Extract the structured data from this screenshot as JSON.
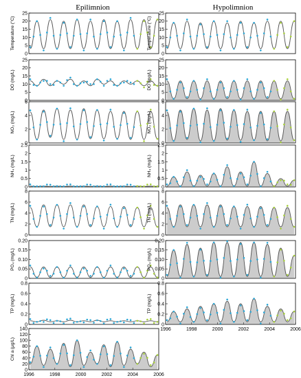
{
  "figure": {
    "columns": [
      "Epilimnion",
      "Hypolimnion"
    ],
    "colors": {
      "model_line": "#555555",
      "model_band": "#6e6e6e",
      "obs_calibration": "#2aa6d6",
      "obs_validation": "#a6cf3a"
    }
  },
  "chart_data": [
    {
      "type": "line",
      "column": "Epilimnion",
      "ylabel": "Temperature (°C)",
      "ylim": [
        0,
        25
      ],
      "yticks": [
        "0",
        "5",
        "10",
        "15",
        "20",
        "25"
      ],
      "series": [
        {
          "values": [
            3,
            20,
            3,
            21,
            3,
            20,
            3,
            21,
            3,
            20,
            3,
            21,
            3,
            20,
            3,
            21,
            3,
            21,
            3,
            21
          ]
        }
      ],
      "x": "1996–2006 (seasonal)"
    },
    {
      "type": "line",
      "column": "Epilimnion",
      "ylabel": "DO (mg/L)",
      "ylim": [
        0,
        25
      ],
      "yticks": [
        "0",
        "5",
        "10",
        "15",
        "20",
        "25"
      ],
      "series": [
        {
          "values": [
            12,
            9,
            13,
            9,
            12,
            10,
            13,
            9,
            12,
            9,
            13,
            10,
            12,
            9,
            12,
            10,
            12,
            9,
            12,
            9
          ]
        }
      ]
    },
    {
      "type": "line",
      "column": "Epilimnion",
      "ylabel": "NO₃ (mg/L)",
      "ylim": [
        0,
        6
      ],
      "yticks": [
        "0",
        "2",
        "4",
        "6"
      ],
      "series": [
        {
          "values": [
            4.5,
            0.5,
            4.8,
            0.8,
            5,
            0.5,
            4.8,
            0.5,
            5,
            0.6,
            4.8,
            0.6,
            4.6,
            0.6,
            4.6,
            0.5,
            4.6,
            0.5,
            4.6,
            0.6
          ]
        }
      ]
    },
    {
      "type": "line",
      "column": "Epilimnion",
      "ylabel": "NH₄ (mg/L)",
      "ylim": [
        0,
        2.5
      ],
      "yticks": [
        "0",
        "0.5",
        "1",
        "1.5",
        "2",
        "2.5"
      ],
      "series": [
        {
          "values": [
            0.05,
            0.03,
            0.05,
            0.03,
            0.05,
            0.03,
            0.05,
            0.03,
            0.05,
            0.03,
            0.05,
            0.03,
            0.05,
            0.03,
            0.05,
            0.03,
            0.05,
            0.03,
            0.05,
            0.03
          ]
        }
      ]
    },
    {
      "type": "line",
      "column": "Epilimnion",
      "ylabel": "TN (mg/L)",
      "ylim": [
        0,
        8
      ],
      "yticks": [
        "0",
        "2",
        "4",
        "6",
        "8"
      ],
      "series": [
        {
          "values": [
            5,
            1.5,
            5.5,
            1.5,
            5.5,
            1.5,
            5.5,
            1.5,
            5.5,
            1.5,
            5.2,
            1.5,
            5.2,
            1.5,
            5.2,
            1.5,
            5,
            1.5,
            5,
            1.5
          ]
        }
      ]
    },
    {
      "type": "line",
      "column": "Epilimnion",
      "ylabel": "PO₄ (mg/L)",
      "ylim": [
        0,
        0.2
      ],
      "yticks": [
        "0",
        "0.05",
        "0.10",
        "0.15",
        "0.20"
      ],
      "series": [
        {
          "values": [
            0.06,
            0.005,
            0.06,
            0.005,
            0.06,
            0.005,
            0.06,
            0.005,
            0.06,
            0.005,
            0.06,
            0.005,
            0.06,
            0.005,
            0.06,
            0.005,
            0.06,
            0.005,
            0.06,
            0.005
          ]
        }
      ]
    },
    {
      "type": "line",
      "column": "Epilimnion",
      "ylabel": "TP (mg/L)",
      "ylim": [
        0,
        0.8
      ],
      "yticks": [
        "0",
        "0.2",
        "0.4",
        "0.6",
        "0.8"
      ],
      "series": [
        {
          "values": [
            0.07,
            0.05,
            0.08,
            0.05,
            0.07,
            0.05,
            0.08,
            0.05,
            0.07,
            0.05,
            0.08,
            0.05,
            0.07,
            0.05,
            0.07,
            0.05,
            0.07,
            0.05,
            0.07,
            0.05
          ]
        }
      ]
    },
    {
      "type": "line",
      "column": "Epilimnion",
      "ylabel": "Chl a (μg/L)",
      "ylim": [
        0,
        140
      ],
      "yticks": [
        "0",
        "20",
        "40",
        "60",
        "80",
        "100",
        "120",
        "140"
      ],
      "xlim": [
        1996,
        2006
      ],
      "xticks": [
        "1996",
        "1998",
        "2000",
        "2002",
        "2004",
        "2006"
      ],
      "series": [
        {
          "values": [
            20,
            80,
            15,
            70,
            20,
            90,
            10,
            100,
            15,
            60,
            20,
            85,
            10,
            95,
            15,
            70,
            20,
            60,
            10,
            50
          ]
        }
      ]
    },
    {
      "type": "line",
      "column": "Hypolimnion",
      "ylabel": "Temperature (°C)",
      "ylim": [
        0,
        25
      ],
      "yticks": [
        "0",
        "5",
        "10",
        "15",
        "20",
        "25"
      ],
      "series": [
        {
          "values": [
            3,
            19,
            3,
            20,
            3,
            19,
            3,
            20,
            3,
            19,
            3,
            20,
            3,
            19,
            3,
            20,
            3,
            20,
            3,
            20
          ]
        }
      ]
    },
    {
      "type": "line",
      "column": "Hypolimnion",
      "ylabel": "DO (mg/L)",
      "ylim": [
        0,
        25
      ],
      "yticks": [
        "0",
        "5",
        "10",
        "15",
        "20",
        "25"
      ],
      "series": [
        {
          "values": [
            12,
            1,
            12,
            1,
            12,
            1,
            12,
            1,
            12,
            1,
            12,
            1,
            12,
            1,
            12,
            1,
            12,
            1,
            12,
            1
          ]
        }
      ]
    },
    {
      "type": "line",
      "column": "Hypolimnion",
      "ylabel": "NO₃ (mg/L)",
      "ylim": [
        0,
        6
      ],
      "yticks": [
        "0",
        "2",
        "4",
        "6"
      ],
      "series": [
        {
          "values": [
            4.5,
            0.3,
            4.8,
            0.5,
            5,
            0.3,
            4.8,
            0.3,
            5,
            0.4,
            4.8,
            0.4,
            4.6,
            0.4,
            4.6,
            0.3,
            4.6,
            0.3,
            4.6,
            0.4
          ]
        }
      ]
    },
    {
      "type": "line",
      "column": "Hypolimnion",
      "ylabel": "NH₄ (mg/L)",
      "ylim": [
        0,
        2.5
      ],
      "yticks": [
        "0",
        "0.5",
        "1",
        "1.5",
        "2",
        "2.5"
      ],
      "series": [
        {
          "values": [
            0.05,
            0.6,
            0.05,
            0.9,
            0.05,
            0.7,
            0.05,
            0.8,
            0.05,
            1.2,
            0.05,
            0.9,
            0.05,
            1.5,
            0.05,
            0.8,
            0.05,
            0.5,
            0.05,
            0.4
          ]
        }
      ]
    },
    {
      "type": "line",
      "column": "Hypolimnion",
      "ylabel": "TN (mg/L)",
      "ylim": [
        0,
        8
      ],
      "yticks": [
        "0",
        "2",
        "4",
        "6",
        "8"
      ],
      "series": [
        {
          "values": [
            5,
            1.5,
            5.5,
            1.5,
            5.5,
            1.5,
            5.5,
            1.5,
            5.5,
            1.5,
            5.2,
            1.5,
            5.2,
            1.5,
            5.2,
            1.5,
            5,
            1.5,
            5,
            1.5
          ]
        }
      ]
    },
    {
      "type": "line",
      "column": "Hypolimnion",
      "ylabel": "PO₄ (mg/L)",
      "ylim": [
        0,
        0.2
      ],
      "yticks": [
        "0",
        "0.05",
        "0.10",
        "0.15",
        "0.20"
      ],
      "series": [
        {
          "values": [
            0.01,
            0.15,
            0.01,
            0.18,
            0.01,
            0.16,
            0.01,
            0.19,
            0.01,
            0.19,
            0.01,
            0.19,
            0.01,
            0.19,
            0.01,
            0.18,
            0.01,
            0.16,
            0.01,
            0.12
          ]
        }
      ]
    },
    {
      "type": "line",
      "column": "Hypolimnion",
      "ylabel": "TP (mg/L)",
      "ylim": [
        0,
        0.8
      ],
      "yticks": [
        "0",
        "0.2",
        "0.4",
        "0.6",
        "0.8"
      ],
      "xlim": [
        1996,
        2006
      ],
      "xticks": [
        "1996",
        "1998",
        "2000",
        "2002",
        "2004",
        "2006"
      ],
      "series": [
        {
          "values": [
            0.05,
            0.25,
            0.05,
            0.3,
            0.05,
            0.35,
            0.05,
            0.4,
            0.05,
            0.45,
            0.05,
            0.4,
            0.05,
            0.5,
            0.05,
            0.35,
            0.05,
            0.3,
            0.05,
            0.25
          ]
        }
      ]
    }
  ]
}
